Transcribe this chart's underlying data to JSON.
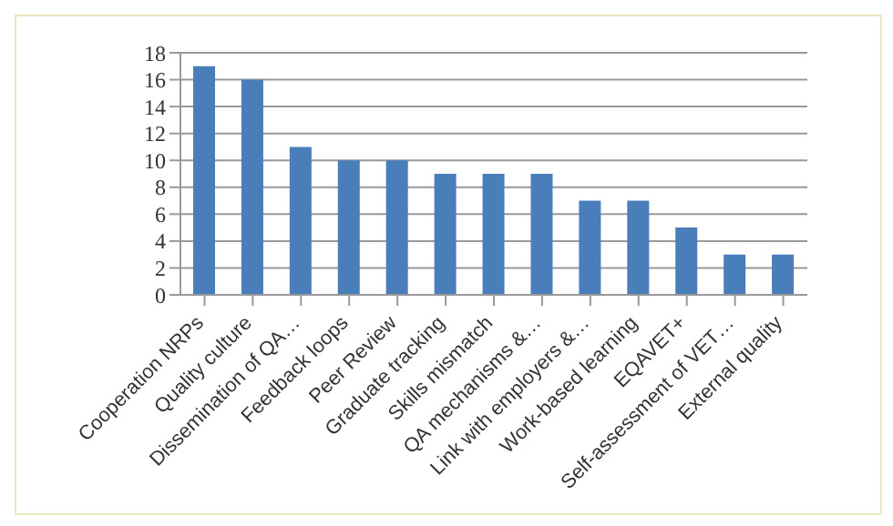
{
  "chart_data": {
    "type": "bar",
    "categories": [
      "Cooperation NRPs",
      "Quality culture",
      "Dissemination of QA…",
      "Feedback loops",
      "Peer Review",
      "Graduate tracking",
      "Skills mismatch",
      "QA mechanisms &…",
      "Link with employers &…",
      "Work-based learning",
      "EQAVET+",
      "Self-assessment of VET…",
      "External quality"
    ],
    "values": [
      17,
      16,
      11,
      10,
      10,
      9,
      9,
      9,
      7,
      7,
      5,
      3,
      3
    ],
    "color": "#4a7ebb",
    "ylim": [
      0,
      18
    ],
    "yticks": [
      0,
      2,
      4,
      6,
      8,
      10,
      12,
      14,
      16,
      18
    ],
    "grid": "y"
  }
}
